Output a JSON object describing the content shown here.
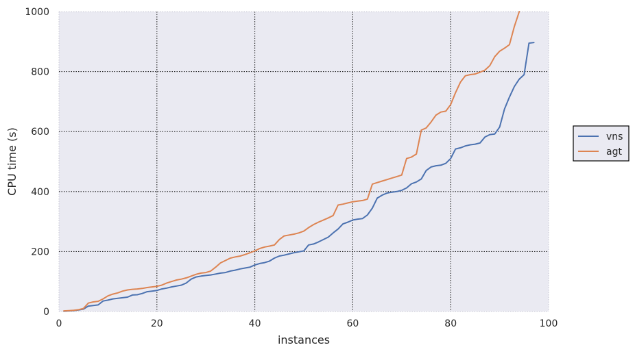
{
  "chart_data": {
    "type": "line",
    "xlabel": "instances",
    "ylabel": "CPU time (s)",
    "xlim": [
      0,
      100
    ],
    "ylim": [
      0,
      1000
    ],
    "xticks": [
      0,
      20,
      40,
      60,
      80,
      100
    ],
    "yticks": [
      0,
      200,
      400,
      600,
      800,
      1000
    ],
    "grid": true,
    "legend_position": "right",
    "series": [
      {
        "name": "vns",
        "color": "#4c72b0",
        "x": [
          1,
          2,
          3,
          4,
          5,
          6,
          7,
          8,
          9,
          10,
          11,
          12,
          13,
          14,
          15,
          16,
          17,
          18,
          19,
          20,
          21,
          22,
          23,
          24,
          25,
          26,
          27,
          28,
          29,
          30,
          31,
          32,
          33,
          34,
          35,
          36,
          37,
          38,
          39,
          40,
          41,
          42,
          43,
          44,
          45,
          46,
          47,
          48,
          49,
          50,
          51,
          52,
          53,
          54,
          55,
          56,
          57,
          58,
          59,
          60,
          61,
          62,
          63,
          64,
          65,
          66,
          67,
          68,
          69,
          70,
          71,
          72,
          73,
          74,
          75,
          76,
          77,
          78,
          79,
          80,
          81,
          82,
          83,
          84,
          85,
          86,
          87,
          88,
          89,
          90,
          91,
          92,
          93,
          94,
          95,
          96,
          97
        ],
        "values": [
          1,
          2,
          3,
          5,
          8,
          18,
          20,
          22,
          35,
          38,
          42,
          44,
          46,
          48,
          55,
          56,
          60,
          66,
          68,
          70,
          75,
          78,
          82,
          85,
          88,
          95,
          108,
          115,
          118,
          120,
          122,
          125,
          128,
          130,
          135,
          138,
          142,
          145,
          148,
          155,
          160,
          163,
          168,
          178,
          185,
          188,
          192,
          196,
          199,
          202,
          222,
          225,
          232,
          240,
          248,
          262,
          275,
          292,
          298,
          305,
          308,
          310,
          322,
          345,
          378,
          388,
          395,
          398,
          400,
          404,
          412,
          426,
          432,
          442,
          470,
          482,
          486,
          488,
          494,
          510,
          542,
          546,
          552,
          556,
          558,
          562,
          582,
          590,
          592,
          615,
          675,
          715,
          750,
          775,
          790,
          895,
          897
        ]
      },
      {
        "name": "agt",
        "color": "#dd8452",
        "x": [
          1,
          2,
          3,
          4,
          5,
          6,
          7,
          8,
          9,
          10,
          11,
          12,
          13,
          14,
          15,
          16,
          17,
          18,
          19,
          20,
          21,
          22,
          23,
          24,
          25,
          26,
          27,
          28,
          29,
          30,
          31,
          32,
          33,
          34,
          35,
          36,
          37,
          38,
          39,
          40,
          41,
          42,
          43,
          44,
          45,
          46,
          47,
          48,
          49,
          50,
          51,
          52,
          53,
          54,
          55,
          56,
          57,
          58,
          59,
          60,
          61,
          62,
          63,
          64,
          65,
          66,
          67,
          68,
          69,
          70,
          71,
          72,
          73,
          74,
          75,
          76,
          77,
          78,
          79,
          80,
          81,
          82,
          83,
          84,
          85,
          86,
          87,
          88,
          89,
          90,
          91,
          92,
          93,
          94
        ],
        "values": [
          2,
          3,
          4,
          6,
          10,
          28,
          32,
          34,
          42,
          52,
          58,
          62,
          68,
          72,
          74,
          75,
          77,
          80,
          82,
          84,
          88,
          95,
          100,
          105,
          108,
          112,
          118,
          124,
          128,
          130,
          135,
          148,
          162,
          170,
          178,
          182,
          185,
          190,
          196,
          202,
          210,
          215,
          218,
          222,
          240,
          252,
          255,
          258,
          262,
          268,
          280,
          290,
          298,
          305,
          312,
          320,
          355,
          358,
          362,
          366,
          368,
          370,
          375,
          425,
          430,
          435,
          440,
          445,
          450,
          455,
          510,
          515,
          525,
          605,
          612,
          632,
          655,
          665,
          668,
          690,
          730,
          765,
          786,
          790,
          792,
          798,
          805,
          820,
          850,
          868,
          878,
          890,
          950,
          1000
        ]
      }
    ]
  }
}
